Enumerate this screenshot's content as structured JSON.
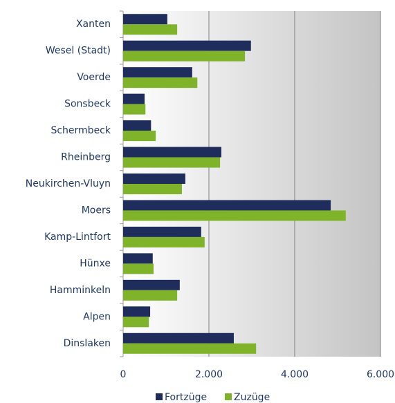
{
  "chart_data": {
    "type": "barh",
    "categories": [
      "Xanten",
      "Wesel (Stadt)",
      "Voerde",
      "Sonsbeck",
      "Schermbeck",
      "Rheinberg",
      "Neukirchen-Vluyn",
      "Moers",
      "Kamp-Lintfort",
      "Hünxe",
      "Hamminkeln",
      "Alpen",
      "Dinslaken"
    ],
    "series": [
      {
        "name": "Fortzüge",
        "color": "#1f2d5c",
        "values": [
          1030,
          2980,
          1610,
          500,
          650,
          2290,
          1450,
          4840,
          1820,
          690,
          1320,
          630,
          2580
        ]
      },
      {
        "name": "Zuzüge",
        "color": "#7fb32a",
        "values": [
          1260,
          2840,
          1730,
          520,
          760,
          2260,
          1370,
          5190,
          1900,
          710,
          1260,
          600,
          3100
        ]
      }
    ],
    "xlim": [
      0,
      6000
    ],
    "xticks": [
      0,
      {
        "value": 2000,
        "label": "2.000"
      },
      {
        "value": 4000,
        "label": "4.000"
      },
      {
        "value": 6000,
        "label": "6.000"
      }
    ],
    "grid": true,
    "legend": "bottom"
  }
}
